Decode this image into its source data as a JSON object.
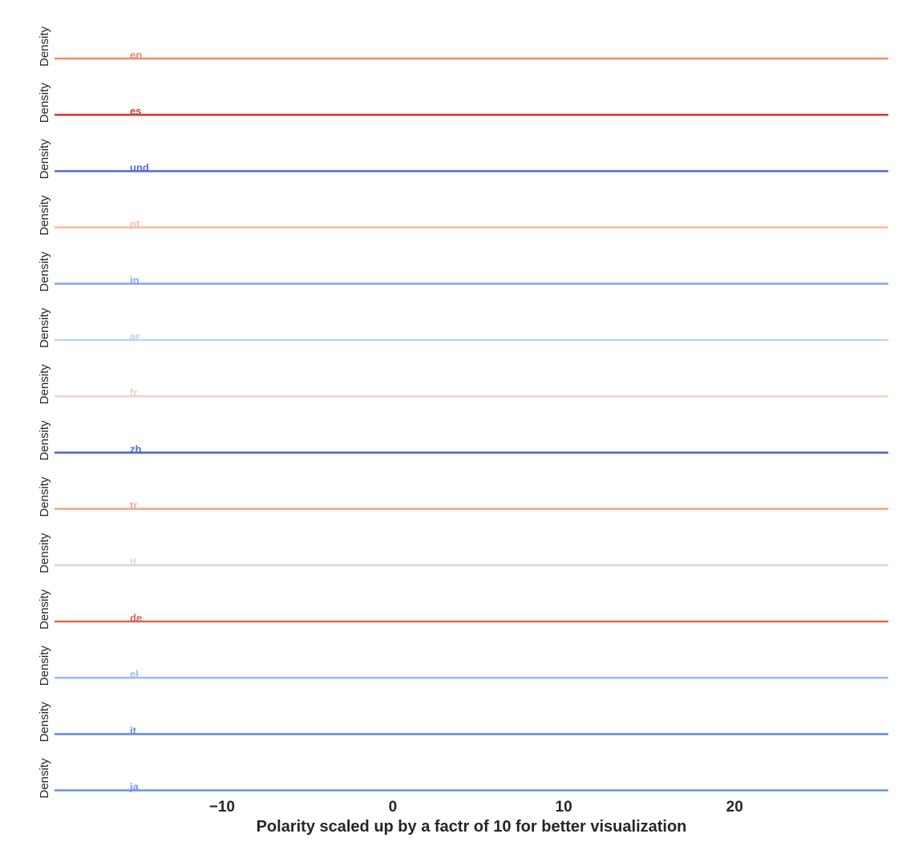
{
  "chart_data": {
    "type": "area",
    "title": "",
    "xlabel": "Polarity scaled up by a factr of 10 for better visualization",
    "ylabel": "Density",
    "xlim": [
      -19.8,
      29.0
    ],
    "xticks": [
      {
        "value": -10,
        "label": "−10"
      },
      {
        "value": 0,
        "label": "0"
      },
      {
        "value": 10,
        "label": "10"
      },
      {
        "value": 20,
        "label": "20"
      }
    ],
    "grid": false,
    "legend": "none",
    "series": [
      {
        "name": "en",
        "color": "#f08a6c"
      },
      {
        "name": "es",
        "color": "#cc4038"
      },
      {
        "name": "und",
        "color": "#5670d6"
      },
      {
        "name": "pt",
        "color": "#f7bea5"
      },
      {
        "name": "in",
        "color": "#84a6f3"
      },
      {
        "name": "ar",
        "color": "#bcd2f6"
      },
      {
        "name": "fr",
        "color": "#edd5cb"
      },
      {
        "name": "zh",
        "color": "#4f6ad0"
      },
      {
        "name": "tr",
        "color": "#f5a688"
      },
      {
        "name": "tl",
        "color": "#d3dbe8"
      },
      {
        "name": "de",
        "color": "#e1654e"
      },
      {
        "name": "el",
        "color": "#9cbcf8"
      },
      {
        "name": "it",
        "color": "#6a8de4"
      },
      {
        "name": "ja",
        "color": "#7096ea"
      }
    ]
  }
}
